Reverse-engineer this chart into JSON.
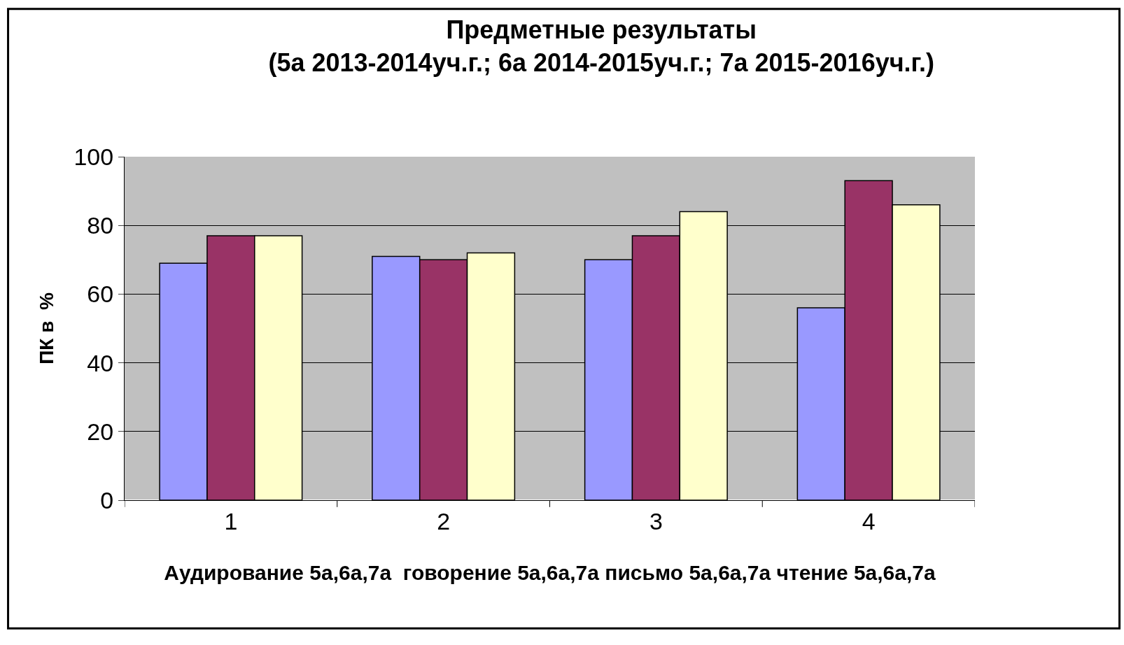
{
  "chart_data": {
    "type": "bar",
    "title": "Предметные результаты",
    "subtitle": "(5а 2013-2014уч.г.; 6а 2014-2015уч.г.; 7а 2015-2016уч.г.)",
    "xlabel": "Аудирование 5а,6а,7а  говорение 5а,6а,7а письмо 5а,6а,7а чтение 5а,6а,7а",
    "ylabel": "ПК в  %",
    "categories": [
      "1",
      "2",
      "3",
      "4"
    ],
    "series": [
      {
        "color": "#9999ff",
        "values": [
          69,
          71,
          70,
          56
        ]
      },
      {
        "color": "#993366",
        "values": [
          77,
          70,
          77,
          93
        ]
      },
      {
        "color": "#ffffcc",
        "values": [
          77,
          72,
          84,
          86
        ]
      }
    ],
    "ylim": [
      0,
      100
    ],
    "yticks": [
      0,
      20,
      40,
      60,
      80,
      100
    ],
    "grid": "y"
  }
}
